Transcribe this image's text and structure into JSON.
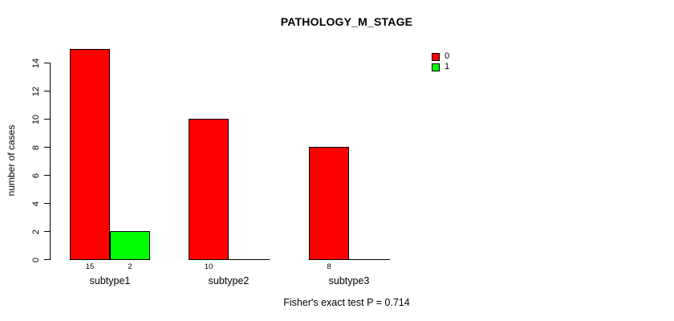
{
  "chart_data": {
    "type": "bar",
    "title": "PATHOLOGY_M_STAGE",
    "xlabel": "",
    "ylabel": "number of cases",
    "categories": [
      "subtype1",
      "subtype2",
      "subtype3"
    ],
    "series": [
      {
        "name": "0",
        "color": "#ff0000",
        "values": [
          15,
          10,
          8
        ]
      },
      {
        "name": "1",
        "color": "#00ff00",
        "values": [
          2,
          0,
          0
        ]
      }
    ],
    "bar_value_labels": [
      [
        "15",
        "2"
      ],
      [
        "10",
        ""
      ],
      [
        "8",
        ""
      ]
    ],
    "ylim": [
      0,
      14
    ],
    "yticks": [
      0,
      2,
      4,
      6,
      8,
      10,
      12,
      14
    ],
    "grid": false,
    "legend_position": "top-right",
    "legend_entries": [
      "0",
      "1"
    ],
    "annotation": "Fisher's exact test P = 0.714",
    "background_color": "#ffffff",
    "axis_color": "#000000"
  }
}
